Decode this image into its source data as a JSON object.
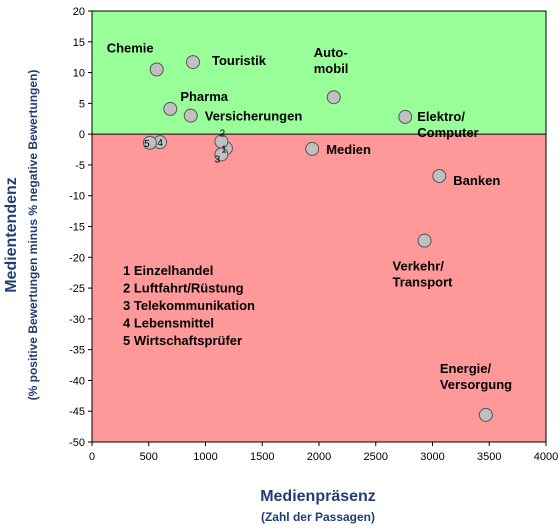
{
  "chart_data": {
    "type": "scatter",
    "xlabel": "Medienpräsenz",
    "xlabel_sub": "(Zahl der Passagen)",
    "ylabel": "Medientendenz",
    "ylabel_sub": "(% positive Bewertungen minus % negative Bewertungen)",
    "xlim": [
      0,
      4000
    ],
    "ylim": [
      -50,
      20
    ],
    "x_ticks": [
      0,
      500,
      1000,
      1500,
      2000,
      2500,
      3000,
      3500,
      4000
    ],
    "y_ticks": [
      20,
      15,
      10,
      5,
      0,
      -5,
      -10,
      -15,
      -20,
      -25,
      -30,
      -35,
      -40,
      -45,
      -50
    ],
    "background_regions": [
      {
        "range": [
          0,
          20
        ],
        "color": "#99ff99"
      },
      {
        "range": [
          -50,
          0
        ],
        "color": "#ff9999"
      }
    ],
    "marker_color": "#c0c0c0",
    "points": [
      {
        "label": "Chemie",
        "x": 570,
        "y": 10.5
      },
      {
        "label": "Touristik",
        "x": 890,
        "y": 11.7
      },
      {
        "label": "Auto-\nmobil",
        "x": 2130,
        "y": 6
      },
      {
        "label": "Pharma",
        "x": 690,
        "y": 4.1
      },
      {
        "label": "Versicherungen",
        "x": 870,
        "y": 3
      },
      {
        "label": "Elektro/\nComputer",
        "x": 2760,
        "y": 2.8
      },
      {
        "label": "Medien",
        "x": 1940,
        "y": -2.4
      },
      {
        "label": "Banken",
        "x": 3060,
        "y": -6.8
      },
      {
        "label": "Verkehr/\nTransport",
        "x": 2930,
        "y": -17.3
      },
      {
        "label": "Energie/\nVersorgung",
        "x": 3470,
        "y": -45.6
      },
      {
        "label": "1",
        "x": 1180,
        "y": -2.3
      },
      {
        "label": "2",
        "x": 1140,
        "y": -1.2
      },
      {
        "label": "3",
        "x": 1140,
        "y": -3.3
      },
      {
        "label": "4",
        "x": 600,
        "y": -1.3
      },
      {
        "label": "5",
        "x": 510,
        "y": -1.4
      }
    ],
    "legend_items": [
      "1 Einzelhandel",
      "2 Luftfahrt/Rüstung",
      "3 Telekommunikation",
      "4 Lebensmittel",
      "5 Wirtschaftsprüfer"
    ]
  }
}
